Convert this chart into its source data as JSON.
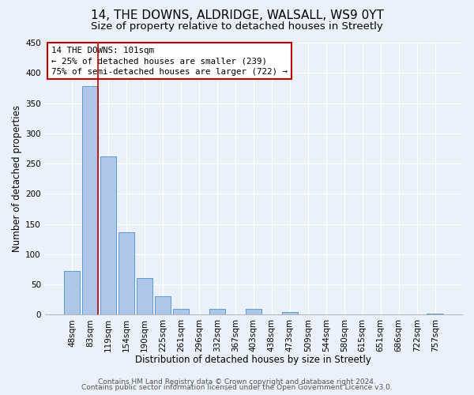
{
  "title": "14, THE DOWNS, ALDRIDGE, WALSALL, WS9 0YT",
  "subtitle": "Size of property relative to detached houses in Streetly",
  "xlabel": "Distribution of detached houses by size in Streetly",
  "ylabel": "Number of detached properties",
  "bar_labels": [
    "48sqm",
    "83sqm",
    "119sqm",
    "154sqm",
    "190sqm",
    "225sqm",
    "261sqm",
    "296sqm",
    "332sqm",
    "367sqm",
    "403sqm",
    "438sqm",
    "473sqm",
    "509sqm",
    "544sqm",
    "580sqm",
    "615sqm",
    "651sqm",
    "686sqm",
    "722sqm",
    "757sqm"
  ],
  "bar_heights": [
    72,
    378,
    262,
    136,
    60,
    30,
    10,
    0,
    10,
    0,
    10,
    0,
    4,
    0,
    0,
    0,
    0,
    0,
    0,
    0,
    2
  ],
  "bar_color": "#aec6e8",
  "bar_edge_color": "#5b9bd5",
  "vline_x": 1.425,
  "vline_color": "#c00000",
  "annotation_box_text": "14 THE DOWNS: 101sqm\n← 25% of detached houses are smaller (239)\n75% of semi-detached houses are larger (722) →",
  "annotation_box_color": "#c00000",
  "ylim": [
    0,
    450
  ],
  "yticks": [
    0,
    50,
    100,
    150,
    200,
    250,
    300,
    350,
    400,
    450
  ],
  "footer_line1": "Contains HM Land Registry data © Crown copyright and database right 2024.",
  "footer_line2": "Contains public sector information licensed under the Open Government Licence v3.0.",
  "background_color": "#eaf1fb",
  "grid_color": "#ffffff",
  "title_fontsize": 11,
  "subtitle_fontsize": 9.5,
  "axis_label_fontsize": 8.5,
  "tick_fontsize": 7.5,
  "footer_fontsize": 6.5,
  "annotation_fontsize": 7.8
}
